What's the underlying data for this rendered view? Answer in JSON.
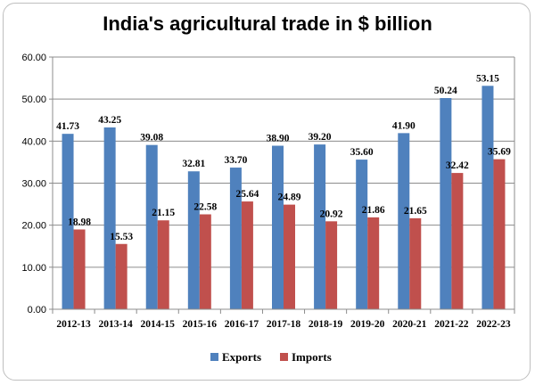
{
  "chart_data": {
    "type": "bar",
    "title": "India's agricultural trade in $ billion",
    "xlabel": "",
    "ylabel": "",
    "categories": [
      "2012-13",
      "2013-14",
      "2014-15",
      "2015-16",
      "2016-17",
      "2017-18",
      "2018-19",
      "2019-20",
      "2020-21",
      "2021-22",
      "2022-23"
    ],
    "series": [
      {
        "name": "Exports",
        "color": "#4f81bd",
        "values": [
          41.73,
          43.25,
          39.08,
          32.81,
          33.7,
          38.9,
          39.2,
          35.6,
          41.9,
          50.24,
          53.15
        ]
      },
      {
        "name": "Imports",
        "color": "#c0504d",
        "values": [
          18.98,
          15.53,
          21.15,
          22.58,
          25.64,
          24.89,
          20.92,
          21.86,
          21.65,
          32.42,
          35.69
        ]
      }
    ],
    "ylim": [
      0,
      60
    ],
    "yticks": [
      "0.00",
      "10.00",
      "20.00",
      "30.00",
      "40.00",
      "50.00",
      "60.00"
    ],
    "grid": true,
    "legend": "bottom"
  }
}
